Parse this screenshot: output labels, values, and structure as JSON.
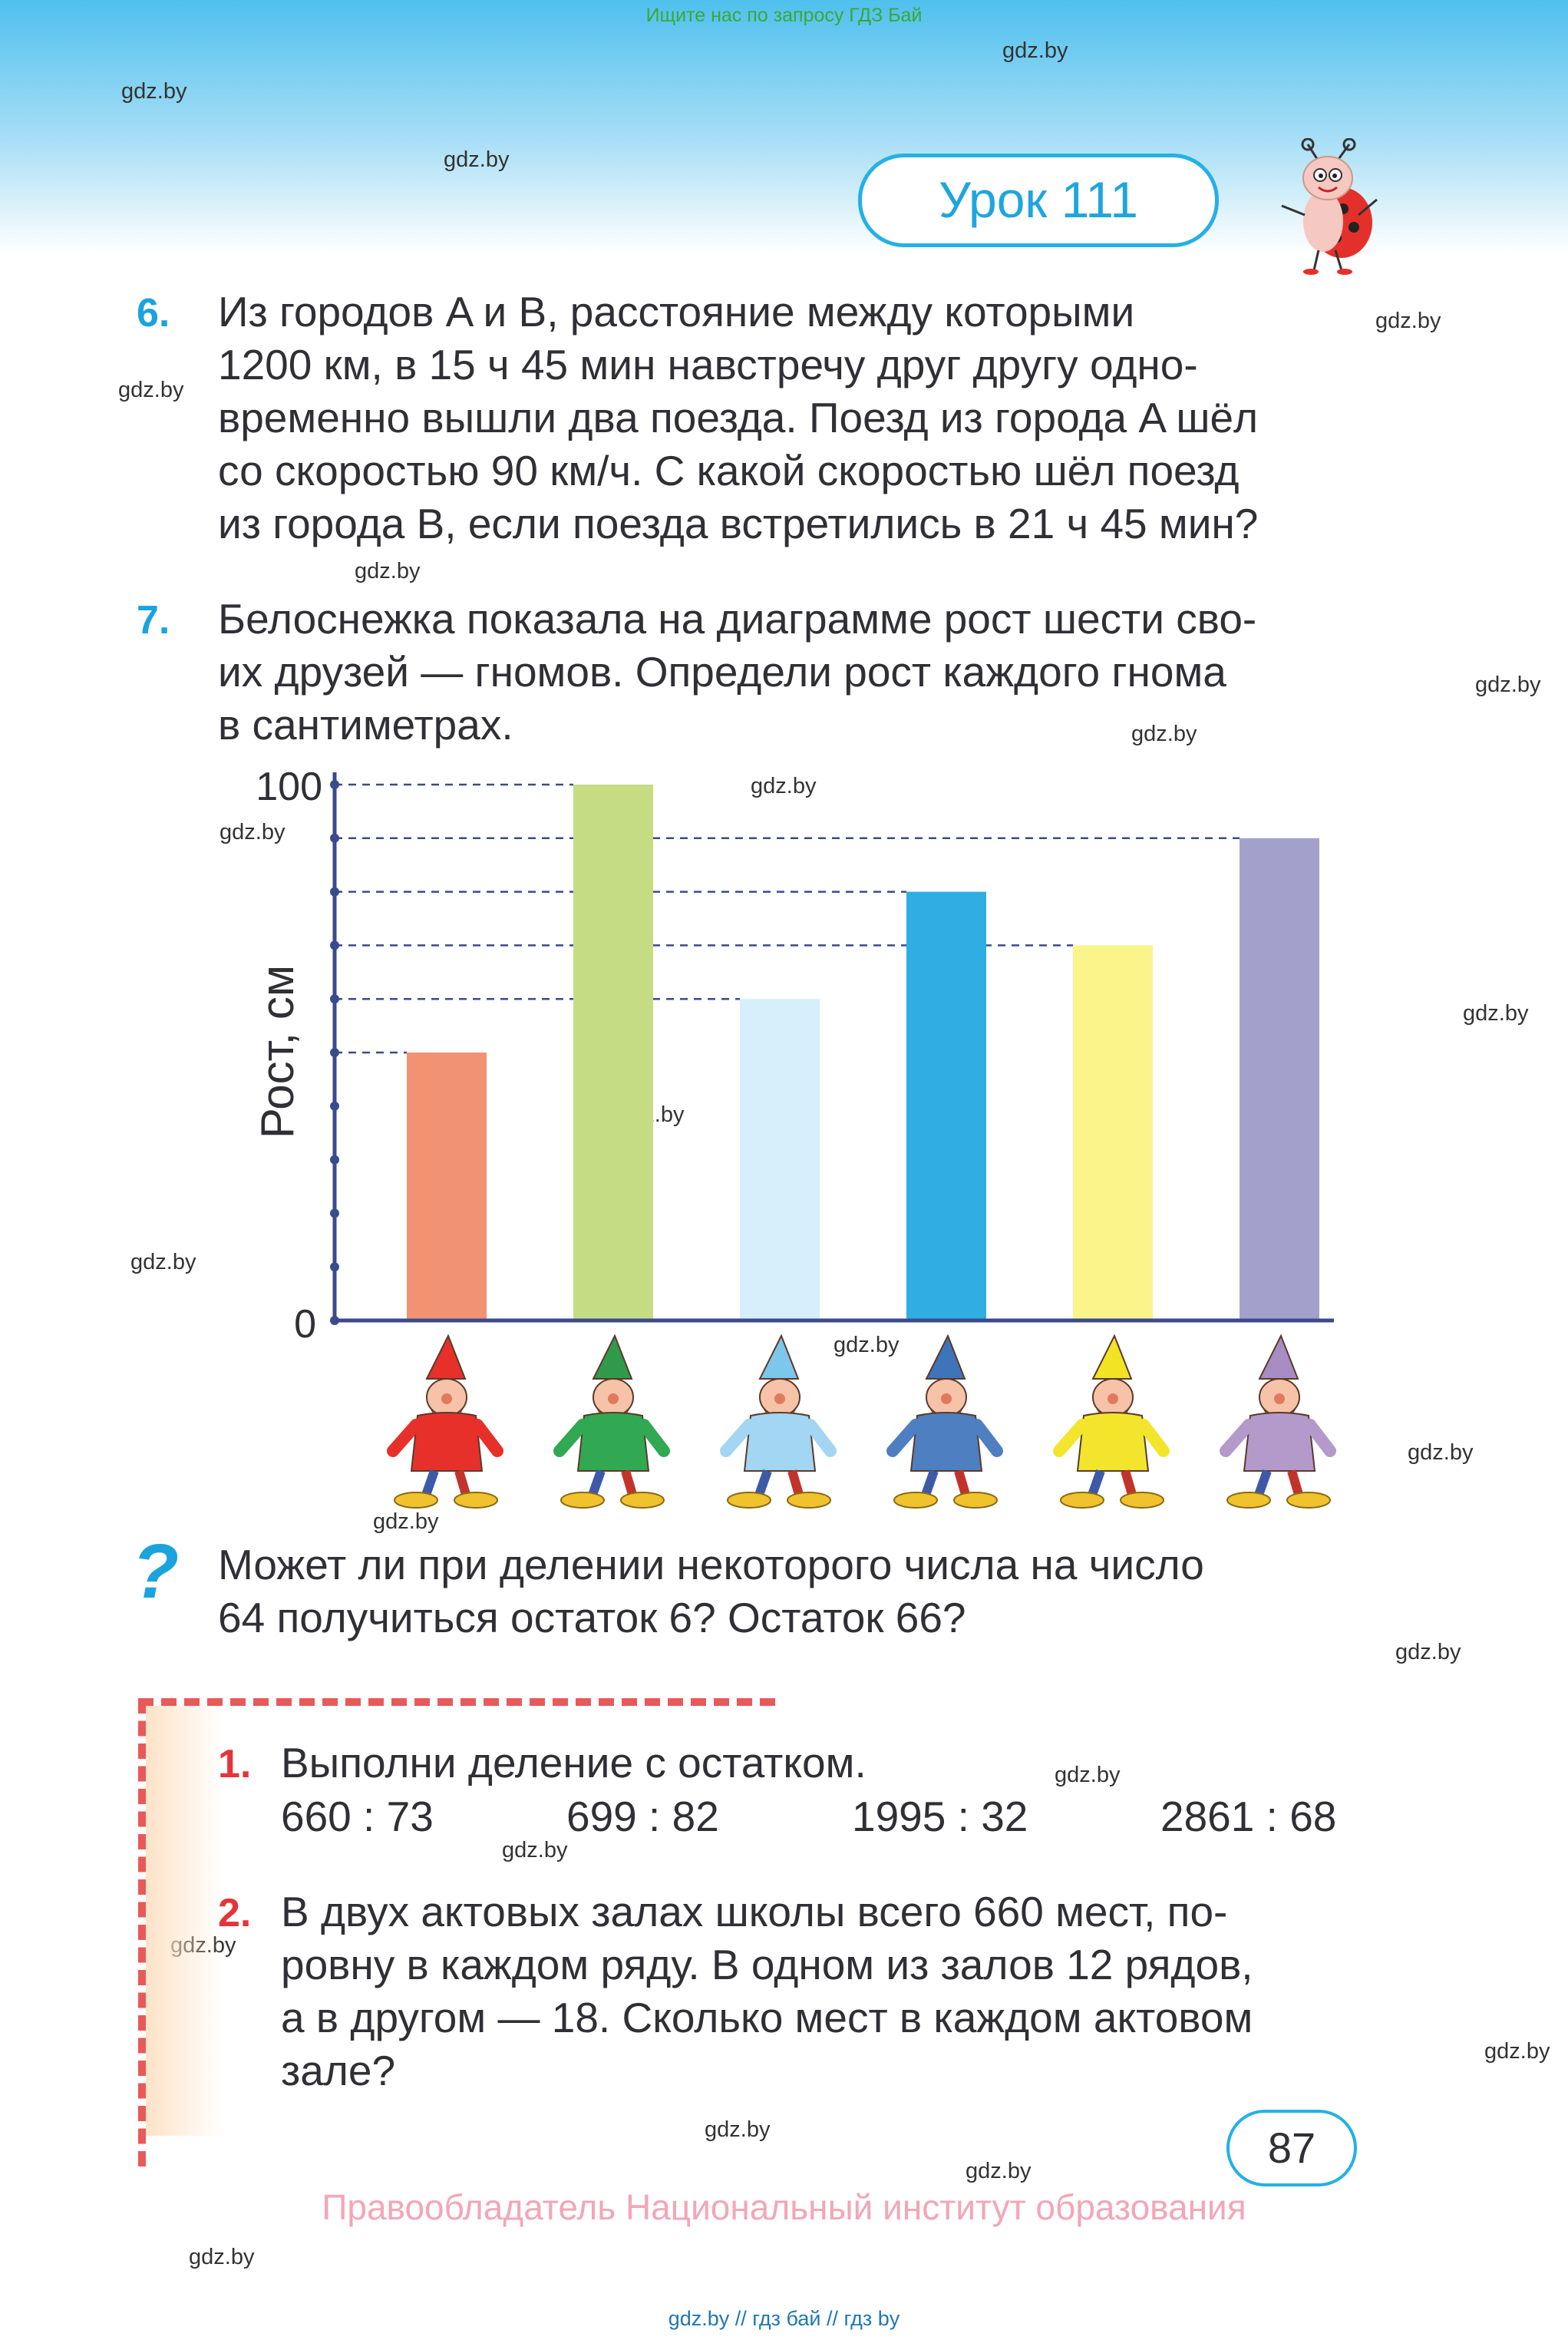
{
  "banner": "Ищите нас по запросу ГДЗ Бай",
  "watermark": "gdz.by",
  "lesson_title": "Урок 111",
  "task6": {
    "number": "6.",
    "lines": [
      "Из городов A и B, расстояние между которыми",
      "1200 км, в 15 ч 45 мин навстречу друг другу одно-",
      "временно вышли два поезда. Поезд из города A шёл",
      "со скоростью 90 км/ч. С какой скоростью шёл поезд",
      "из города B, если поезда встретились в 21 ч 45 мин?"
    ]
  },
  "task7": {
    "number": "7.",
    "lines": [
      "Белоснежка показала на диаграмме рост шести сво-",
      "их друзей — гномов. Определи рост каждого гнома",
      "в сантиметрах."
    ]
  },
  "chart_data": {
    "type": "bar",
    "ylabel": "Рост, см",
    "ylim": [
      0,
      100
    ],
    "y_ticks": [
      "0",
      "100"
    ],
    "tick_step": 10,
    "categories": [
      "red",
      "green",
      "light-blue",
      "blue",
      "yellow",
      "purple"
    ],
    "values": [
      50,
      100,
      60,
      80,
      70,
      90
    ],
    "bar_colors": [
      "#f19272",
      "#c6dc83",
      "#d7eefb",
      "#2eaee2",
      "#fbf48a",
      "#a3a1cc"
    ],
    "gnome_hat_colors": [
      "#e8302b",
      "#2f9b4a",
      "#7cc7ec",
      "#3e74b9",
      "#f1e425",
      "#a88dc4"
    ],
    "gnome_coat_colors": [
      "#e8302b",
      "#31a852",
      "#a2d6f2",
      "#4e7fc0",
      "#f3e52c",
      "#b39acb"
    ]
  },
  "question": {
    "icon": "question-mark-icon",
    "lines": [
      "Может ли при делении некоторого числа на число",
      "64 получиться остаток 6? Остаток 66?"
    ]
  },
  "review": {
    "task1": {
      "number": "1.",
      "text": "Выполни деление с остатком.",
      "examples": [
        "660 : 73",
        "699 : 82",
        "1995 : 32",
        "2861 : 68"
      ]
    },
    "task2": {
      "number": "2.",
      "lines": [
        "В двух актовых залах школы всего 660 мест, по-",
        "ровну в каждом ряду. В одном из залов 12 рядов,",
        "а в другом — 18. Сколько мест в каждом актовом",
        "зале?"
      ]
    }
  },
  "page_number": "87",
  "copyright": "Правообладатель Национальный институт образования",
  "bottom_links": "gdz.by  //  гдз бай  //  гдз by"
}
